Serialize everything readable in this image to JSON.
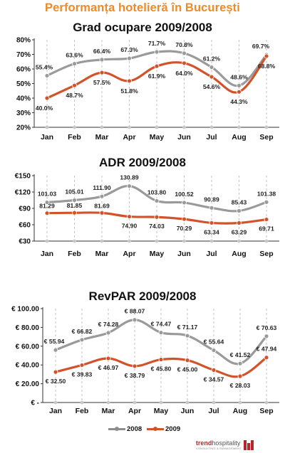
{
  "header": {
    "title": "Performanța hotelieră în București"
  },
  "colors": {
    "s2008": "#9a9a9a",
    "s2009": "#d2532a",
    "accent": "#f08a24"
  },
  "legend": [
    {
      "label": "2008",
      "color": "#8d8d8d"
    },
    {
      "label": "2009",
      "color": "#d2532a"
    }
  ],
  "logo": {
    "brand_a": "trend",
    "brand_b": "hospitality",
    "tagline": "CONSULTING & MANAGEMENT"
  },
  "chart_data": [
    {
      "type": "line",
      "title": "Grad ocupare 2009/2008",
      "categories": [
        "Jan",
        "Feb",
        "Mar",
        "Apr",
        "May",
        "Jun",
        "Jul",
        "Aug",
        "Sep"
      ],
      "ylim": [
        20,
        80
      ],
      "yticks": [
        20,
        30,
        40,
        50,
        60,
        70,
        80
      ],
      "ytick_labels": [
        "20%",
        "30%",
        "40%",
        "50%",
        "60%",
        "70%",
        "80%"
      ],
      "grid": "vertical dashed",
      "series": [
        {
          "name": "2008",
          "values": [
            55.4,
            63.6,
            66.4,
            67.3,
            71.7,
            70.8,
            61.2,
            48.6,
            69.7
          ],
          "labels": [
            "55.4%",
            "63.6%",
            "66.4%",
            "67.3%",
            "71.7%",
            "70.8%",
            "61.2%",
            "48.6%",
            "69.7%"
          ]
        },
        {
          "name": "2009",
          "values": [
            40.0,
            48.7,
            57.5,
            51.8,
            61.9,
            64.0,
            54.6,
            44.3,
            68.8
          ],
          "labels": [
            "40.0%",
            "48.7%",
            "57.5%",
            "51.8%",
            "61.9%",
            "64.0%",
            "54.6%",
            "44.3%",
            "68.8%"
          ]
        }
      ]
    },
    {
      "type": "line",
      "title": "ADR 2009/2008",
      "categories": [
        "Jan",
        "Feb",
        "Mar",
        "Apr",
        "May",
        "Jun",
        "Jul",
        "Aug",
        "Sep"
      ],
      "ylim": [
        30,
        150
      ],
      "yticks": [
        30,
        60,
        90,
        120,
        150
      ],
      "ytick_labels": [
        "€30",
        "€60",
        "€90",
        "€120",
        "€150"
      ],
      "grid": "vertical dashed",
      "series": [
        {
          "name": "2008",
          "values": [
            101.03,
            105.01,
            111.9,
            130.89,
            103.8,
            100.52,
            90.89,
            85.43,
            101.38
          ],
          "labels": [
            "101.03",
            "105.01",
            "111.90",
            "130.89",
            "103.80",
            "100.52",
            "90.89",
            "85.43",
            "101.38"
          ]
        },
        {
          "name": "2009",
          "values": [
            81.29,
            81.85,
            81.69,
            74.9,
            74.03,
            70.29,
            63.34,
            63.29,
            69.71
          ],
          "labels": [
            "81.29",
            "81.85",
            "81.69",
            "74.90",
            "74.03",
            "70.29",
            "63.34",
            "63.29",
            "69.71"
          ]
        }
      ]
    },
    {
      "type": "line",
      "title": "RevPAR 2009/2008",
      "categories": [
        "Jan",
        "Feb",
        "Mar",
        "Apr",
        "May",
        "Jun",
        "Jul",
        "Aug",
        "Sep"
      ],
      "ylim": [
        0,
        100
      ],
      "yticks": [
        0,
        20,
        40,
        60,
        80,
        100
      ],
      "ytick_labels": [
        "€ -",
        "€ 20.00",
        "€ 40.00",
        "€ 60.00",
        "€ 80.00",
        "€ 100.00"
      ],
      "grid": "vertical dashed",
      "series": [
        {
          "name": "2008",
          "values": [
            55.94,
            66.82,
            74.28,
            88.07,
            74.47,
            71.17,
            55.64,
            41.52,
            70.63
          ],
          "labels": [
            "€ 55.94",
            "€ 66.82",
            "€ 74.28",
            "€ 88.07",
            "€ 74.47",
            "€ 71.17",
            "€ 55.64",
            "€ 41.52",
            "€ 70.63"
          ]
        },
        {
          "name": "2009",
          "values": [
            32.5,
            39.83,
            46.97,
            38.79,
            45.8,
            45.0,
            34.57,
            28.03,
            47.94
          ],
          "labels": [
            "€ 32.50",
            "€ 39.83",
            "€ 46.97",
            "€ 38.79",
            "€ 45.80",
            "€ 45.00",
            "€ 34.57",
            "€ 28.03",
            "€ 47.94"
          ]
        }
      ]
    }
  ]
}
